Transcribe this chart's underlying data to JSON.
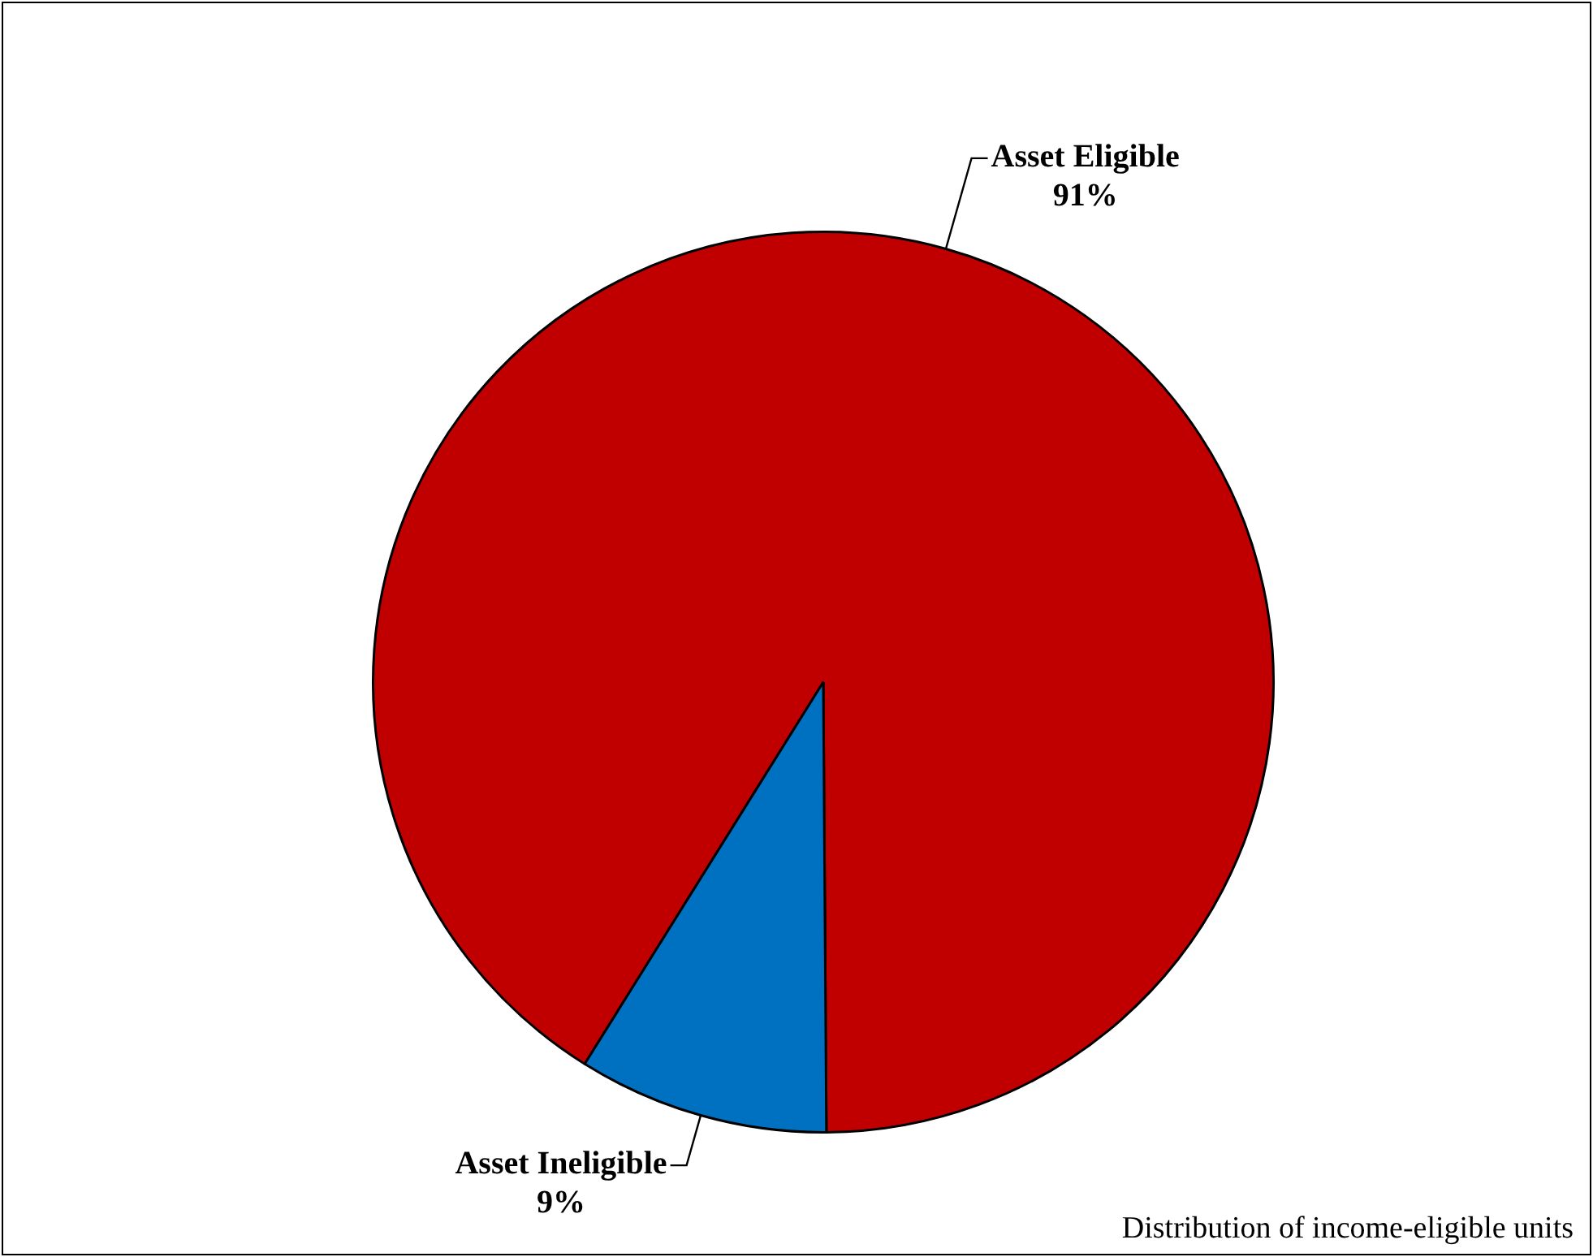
{
  "chart_data": {
    "type": "pie",
    "categories": [
      "Asset Eligible",
      "Asset Ineligible"
    ],
    "values": [
      91,
      9
    ],
    "colors": [
      "#c00000",
      "#0070c0"
    ],
    "value_labels": [
      "91%",
      "9%"
    ],
    "legend": false,
    "annotations": [
      "Distribution of income-eligible units"
    ]
  }
}
